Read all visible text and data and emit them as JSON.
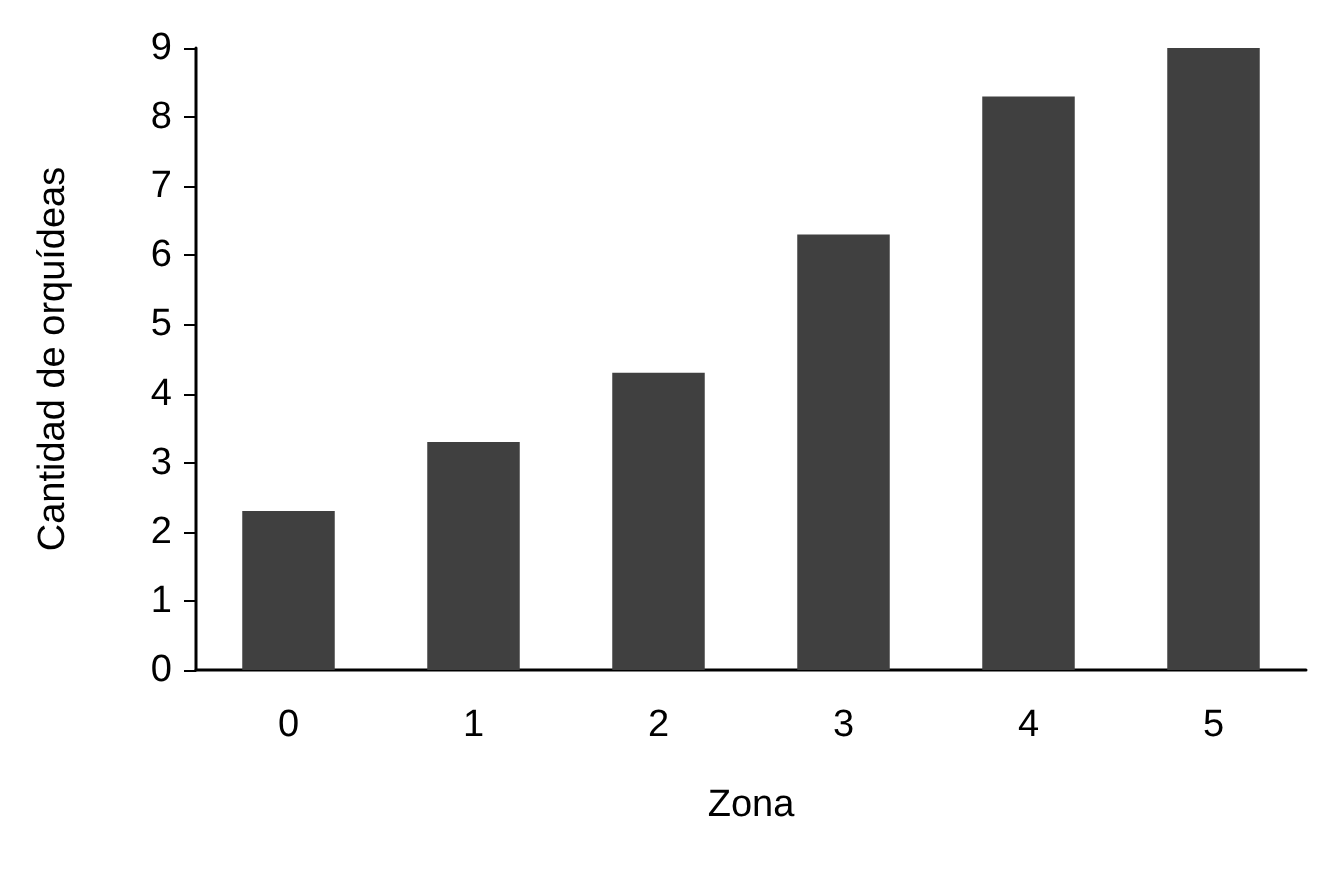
{
  "chart_data": {
    "type": "bar",
    "xlabel": "Zona",
    "ylabel": "Cantidad de orquídeas",
    "categories": [
      "0",
      "1",
      "2",
      "3",
      "4",
      "5"
    ],
    "values": [
      2.3,
      3.3,
      4.3,
      6.3,
      8.3,
      9.0
    ],
    "color": "#404040",
    "ylim": [
      0,
      9
    ],
    "yticks": [
      0,
      1,
      2,
      3,
      4,
      5,
      6,
      7,
      8,
      9
    ],
    "grid": false
  }
}
